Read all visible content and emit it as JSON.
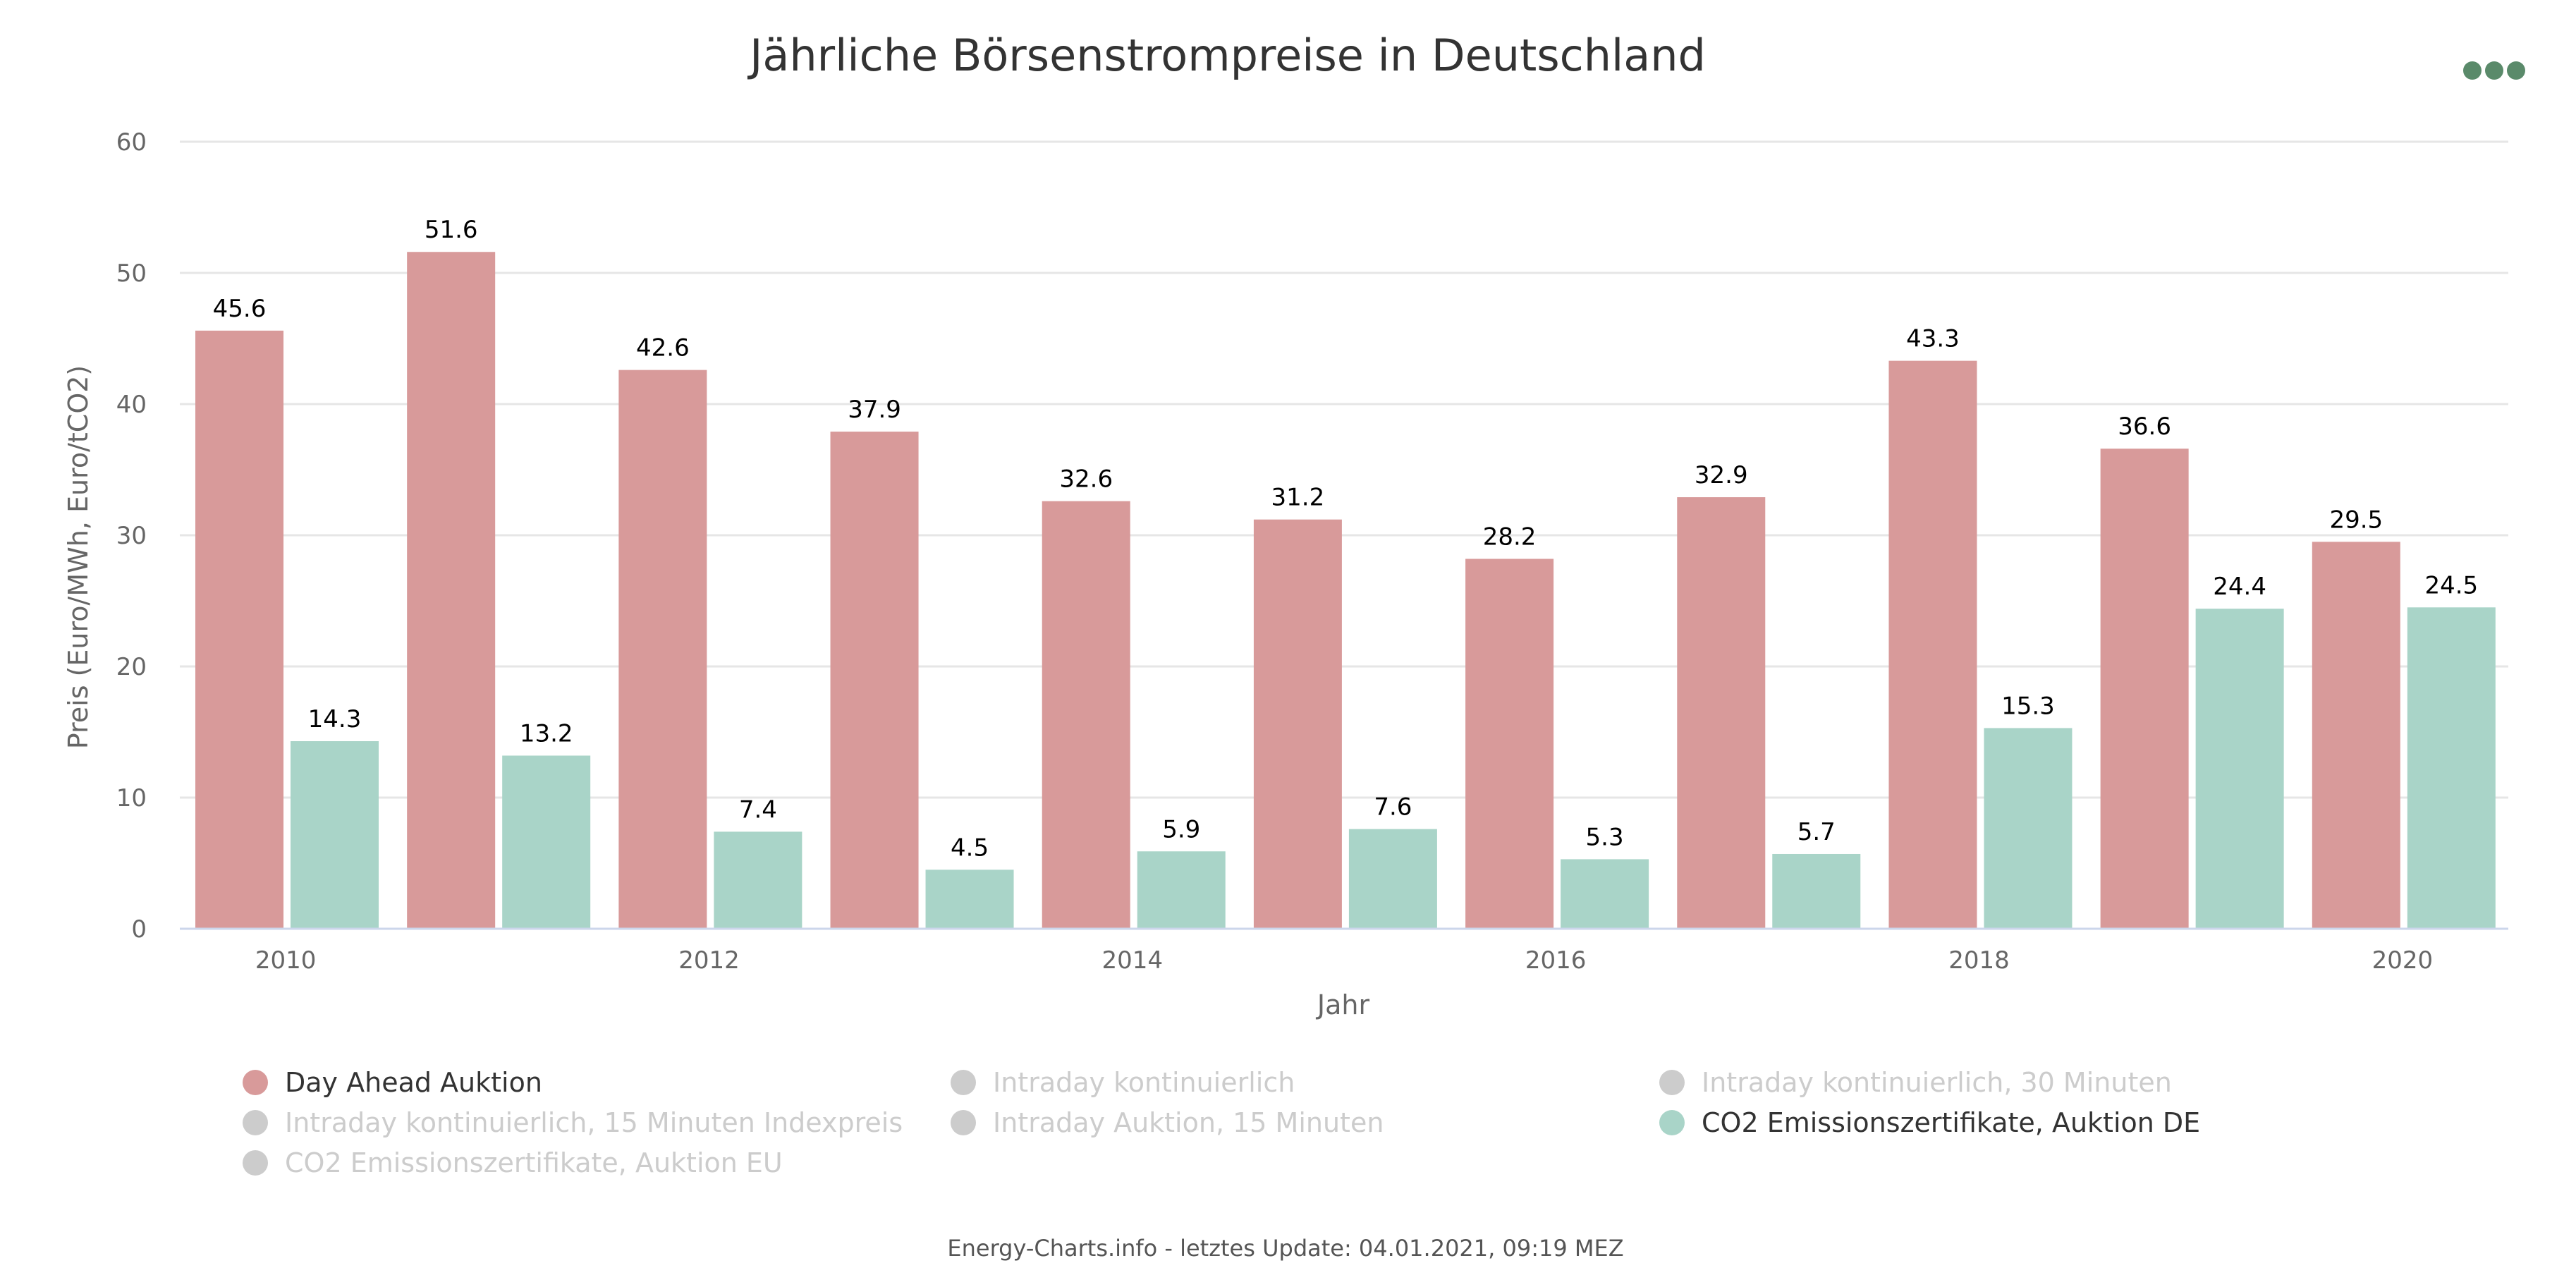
{
  "chart_data": {
    "type": "bar",
    "title": "Jährliche Börsenstrompreise in Deutschland",
    "xlabel": "Jahr",
    "ylabel": "Preis (Euro/MWh, Euro/tCO2)",
    "ylim": [
      0,
      60
    ],
    "yticks": [
      "0",
      "10",
      "20",
      "30",
      "40",
      "50",
      "60"
    ],
    "categories": [
      "2010",
      "2011",
      "2012",
      "2013",
      "2014",
      "2015",
      "2016",
      "2017",
      "2018",
      "2019",
      "2020"
    ],
    "xtick_labels": [
      "2010",
      "",
      "2012",
      "",
      "2014",
      "",
      "2016",
      "",
      "2018",
      "",
      "2020"
    ],
    "grid": true,
    "series": [
      {
        "name": "Day Ahead Auktion",
        "color": "#d89a9a",
        "values": [
          45.6,
          51.6,
          42.6,
          37.9,
          32.6,
          31.2,
          28.2,
          32.9,
          43.3,
          36.6,
          29.5
        ],
        "labels": [
          "45.6",
          "51.6",
          "42.6",
          "37.9",
          "32.6",
          "31.2",
          "28.2",
          "32.9",
          "43.3",
          "36.6",
          "29.5"
        ]
      },
      {
        "name": "CO2 Emissionszertifikate, Auktion DE",
        "color": "#a9d4c8",
        "values": [
          14.3,
          13.2,
          7.4,
          4.5,
          5.9,
          7.6,
          5.3,
          5.7,
          15.3,
          24.4,
          24.5
        ],
        "labels": [
          "14.3",
          "13.2",
          "7.4",
          "4.5",
          "5.9",
          "7.6",
          "5.3",
          "5.7",
          "15.3",
          "24.4",
          "24.5"
        ]
      }
    ],
    "legend": [
      {
        "name": "Day Ahead Auktion",
        "active": true,
        "color": "#d89a9a"
      },
      {
        "name": "Intraday kontinuierlich",
        "active": false,
        "color": "#cccccc"
      },
      {
        "name": "Intraday kontinuierlich, 30 Minuten",
        "active": false,
        "color": "#cccccc"
      },
      {
        "name": "Intraday kontinuierlich, 15 Minuten Indexpreis",
        "active": false,
        "color": "#cccccc"
      },
      {
        "name": "Intraday Auktion, 15 Minuten",
        "active": false,
        "color": "#cccccc"
      },
      {
        "name": "CO2 Emissionszertifikate, Auktion DE",
        "active": true,
        "color": "#a9d4c8"
      },
      {
        "name": "CO2 Emissionszertifikate, Auktion EU",
        "active": false,
        "color": "#cccccc"
      }
    ],
    "legend_placement": "bottom"
  },
  "credits": "Energy-Charts.info - letztes Update: 04.01.2021, 09:19 MEZ",
  "colors": {
    "menu_icon": "#5a8a6a",
    "inactive_text": "#cccccc",
    "active_text": "#333333"
  }
}
